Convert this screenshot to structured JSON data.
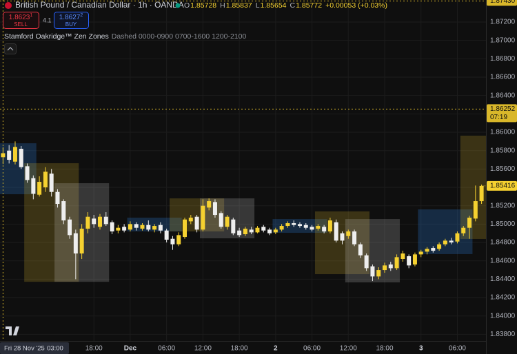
{
  "chart_data": {
    "type": "candlestick",
    "title": "British Pound / Canadian Dollar · 1h · OANDA",
    "ohlc_labels": [
      "O",
      "H",
      "L",
      "C"
    ],
    "change_text": "+0.00053 (+0.03%)",
    "sell": {
      "price": "1.8623",
      "pip": "1",
      "label": "SELL"
    },
    "spread": "4.1",
    "buy": {
      "price": "1.8627",
      "pip": "2",
      "label": "BUY"
    },
    "indicator": {
      "name": "Stamford Oakridge™ Zen Zones",
      "settings": "Dashed 0000-0900 0700-1600 1200-2100"
    },
    "crosshair": {
      "date": "Fri 28 Nov '25",
      "time": "03:00",
      "index": 0
    },
    "up_color": "#f5d130",
    "down_color": "#eeeeee",
    "grid": true,
    "categories": [
      null,
      null,
      null,
      null,
      null,
      null,
      null,
      null,
      null,
      null,
      null,
      null,
      null,
      null,
      null,
      "18:00",
      null,
      null,
      null,
      null,
      null,
      "Dec",
      null,
      null,
      null,
      null,
      null,
      "06:00",
      null,
      null,
      null,
      null,
      null,
      "12:00",
      null,
      null,
      null,
      null,
      null,
      "18:00",
      null,
      null,
      null,
      null,
      null,
      "2",
      null,
      null,
      null,
      null,
      null,
      "06:00",
      null,
      null,
      null,
      null,
      null,
      "12:00",
      null,
      null,
      null,
      null,
      null,
      "18:00",
      null,
      null,
      null,
      null,
      null,
      "3",
      null,
      null,
      null,
      null,
      null,
      "06:00",
      null,
      null,
      null,
      null
    ],
    "open": [
      1.85728,
      1.858,
      1.8568,
      1.8582,
      1.8563,
      1.855,
      1.8532,
      1.854,
      1.8555,
      1.8535,
      1.8525,
      1.8505,
      1.849,
      1.8468,
      1.8495,
      1.8506,
      1.8497,
      1.8508,
      1.8502,
      1.8493,
      1.8497,
      1.8494,
      1.85,
      1.8495,
      1.8499,
      1.8494,
      1.8499,
      1.8493,
      1.8484,
      1.8478,
      1.8486,
      1.8503,
      1.8508,
      1.8494,
      1.8518,
      1.8524,
      1.8512,
      1.8497,
      1.8505,
      1.8493,
      1.8489,
      1.8494,
      1.8491,
      1.8497,
      1.8494,
      1.8491,
      1.8494,
      1.8498,
      1.8501,
      1.85,
      1.8499,
      1.8497,
      1.8495,
      1.8497,
      1.8492,
      1.8502,
      1.849,
      1.8487,
      1.8492,
      1.8478,
      1.8466,
      1.8454,
      1.8443,
      1.845,
      1.8456,
      1.8452,
      1.8462,
      1.8465,
      1.8456,
      1.8467,
      1.847,
      1.8474,
      1.8473,
      1.8478,
      1.8482,
      1.8481,
      1.849,
      1.8496,
      1.8506,
      1.8525
    ],
    "high": [
      1.85837,
      1.8586,
      1.859,
      1.8585,
      1.8566,
      1.8553,
      1.8552,
      1.8562,
      1.856,
      1.8538,
      1.8527,
      1.8508,
      1.8494,
      1.85,
      1.8513,
      1.851,
      1.8511,
      1.8513,
      1.8504,
      1.8499,
      1.85,
      1.8503,
      1.8502,
      1.8501,
      1.8504,
      1.85,
      1.8502,
      1.8495,
      1.8487,
      1.8491,
      1.8507,
      1.851,
      1.851,
      1.8527,
      1.8528,
      1.8527,
      1.8514,
      1.851,
      1.8507,
      1.8496,
      1.8497,
      1.8497,
      1.8498,
      1.8499,
      1.8496,
      1.8496,
      1.85,
      1.8503,
      1.8504,
      1.8502,
      1.8501,
      1.8499,
      1.85,
      1.8499,
      1.8507,
      1.8505,
      1.8492,
      1.8494,
      1.8494,
      1.848,
      1.8468,
      1.8456,
      1.8453,
      1.8458,
      1.8459,
      1.8467,
      1.8471,
      1.8467,
      1.8469,
      1.8472,
      1.8475,
      1.8476,
      1.848,
      1.8484,
      1.8485,
      1.8492,
      1.8498,
      1.8509,
      1.8542,
      1.8543
    ],
    "low": [
      1.85654,
      1.8566,
      1.8565,
      1.856,
      1.8545,
      1.8527,
      1.853,
      1.8535,
      1.853,
      1.8518,
      1.85,
      1.8484,
      1.844,
      1.8462,
      1.849,
      1.8496,
      1.8494,
      1.8498,
      1.8489,
      1.849,
      1.8491,
      1.8492,
      1.8493,
      1.8493,
      1.8492,
      1.8491,
      1.849,
      1.848,
      1.8472,
      1.8476,
      1.8484,
      1.85,
      1.8491,
      1.8492,
      1.8515,
      1.8507,
      1.8495,
      1.8494,
      1.8488,
      1.8486,
      1.8487,
      1.8489,
      1.849,
      1.8491,
      1.8488,
      1.8489,
      1.8492,
      1.8496,
      1.8497,
      1.8496,
      1.8494,
      1.8492,
      1.8493,
      1.849,
      1.849,
      1.848,
      1.8478,
      1.8484,
      1.8476,
      1.8463,
      1.8449,
      1.8438,
      1.844,
      1.8447,
      1.8449,
      1.845,
      1.8459,
      1.8452,
      1.8454,
      1.8464,
      1.8467,
      1.8469,
      1.8471,
      1.8476,
      1.8478,
      1.8479,
      1.8487,
      1.8484,
      1.8503,
      1.8522
    ],
    "close": [
      1.85772,
      1.857,
      1.8584,
      1.8562,
      1.8548,
      1.8533,
      1.8546,
      1.8557,
      1.8535,
      1.8522,
      1.8504,
      1.8488,
      1.8468,
      1.8495,
      1.8508,
      1.85,
      1.8508,
      1.85,
      1.8492,
      1.8496,
      1.8493,
      1.85,
      1.8496,
      1.8499,
      1.8494,
      1.8498,
      1.8493,
      1.8483,
      1.8478,
      1.8488,
      1.8505,
      1.8507,
      1.8494,
      1.852,
      1.8525,
      1.851,
      1.8497,
      1.8508,
      1.849,
      1.8488,
      1.8495,
      1.8491,
      1.8496,
      1.8493,
      1.849,
      1.8494,
      1.8498,
      1.8501,
      1.8499,
      1.8498,
      1.8496,
      1.8494,
      1.8498,
      1.8492,
      1.8504,
      1.8482,
      1.8482,
      1.8492,
      1.8478,
      1.8466,
      1.8452,
      1.8443,
      1.845,
      1.8455,
      1.8452,
      1.8464,
      1.8468,
      1.8455,
      1.8467,
      1.847,
      1.8473,
      1.8471,
      1.8478,
      1.8482,
      1.848,
      1.849,
      1.8496,
      1.8507,
      1.8525,
      1.85416
    ],
    "zones": [
      {
        "color": "rgba(40,110,190,0.30)",
        "start": -3,
        "end": 6,
        "high": 1.8588,
        "low": 1.85325
      },
      {
        "color": "rgba(190,160,40,0.25)",
        "start": 4,
        "end": 13,
        "high": 1.85663,
        "low": 1.84372
      },
      {
        "color": "rgba(200,200,200,0.22)",
        "start": 9,
        "end": 18,
        "high": 1.85445,
        "low": 1.84372
      },
      {
        "color": "rgba(40,110,190,0.30)",
        "start": 21,
        "end": 30,
        "high": 1.8507,
        "low": 1.8492
      },
      {
        "color": "rgba(190,160,40,0.25)",
        "start": 28,
        "end": 37,
        "high": 1.8528,
        "low": 1.8492
      },
      {
        "color": "rgba(200,200,200,0.22)",
        "start": 33,
        "end": 42,
        "high": 1.8528,
        "low": 1.84845
      },
      {
        "color": "rgba(40,110,190,0.30)",
        "start": 45,
        "end": 54,
        "high": 1.85055,
        "low": 1.84905
      },
      {
        "color": "rgba(190,160,40,0.25)",
        "start": 52,
        "end": 61,
        "high": 1.85138,
        "low": 1.84455
      },
      {
        "color": "rgba(200,200,200,0.22)",
        "start": 57,
        "end": 66,
        "high": 1.85055,
        "low": 1.84365
      },
      {
        "color": "rgba(40,110,190,0.30)",
        "start": 69,
        "end": 78,
        "high": 1.8516,
        "low": 1.84673
      },
      {
        "color": "rgba(190,160,40,0.25)",
        "start": 76,
        "end": 85,
        "high": 1.85963,
        "low": 1.84838
      }
    ],
    "price_lines": [
      {
        "value": 1.8743,
        "label": "1.87430",
        "color": "#d9b72a"
      },
      {
        "value": 1.86252,
        "label": "1.86252",
        "countdown": "07:19",
        "color": "#d9b72a"
      }
    ],
    "last_label": "1.85416",
    "ylim": [
      1.83728,
      1.8744
    ],
    "yticks": [
      {
        "value": 1.872,
        "label": "1.87200"
      },
      {
        "value": 1.87,
        "label": "1.87000"
      },
      {
        "value": 1.868,
        "label": "1.86800"
      },
      {
        "value": 1.866,
        "label": "1.86600"
      },
      {
        "value": 1.864,
        "label": "1.86400"
      },
      {
        "value": 1.862,
        "label": "1.86200"
      },
      {
        "value": 1.86,
        "label": "1.86000"
      },
      {
        "value": 1.858,
        "label": "1.85800"
      },
      {
        "value": 1.856,
        "label": "1.85600"
      },
      {
        "value": 1.854,
        "label": "1.85400"
      },
      {
        "value": 1.852,
        "label": "1.85200"
      },
      {
        "value": 1.85,
        "label": "1.85000"
      },
      {
        "value": 1.848,
        "label": "1.84800"
      },
      {
        "value": 1.846,
        "label": "1.84600"
      },
      {
        "value": 1.844,
        "label": "1.84400"
      },
      {
        "value": 1.842,
        "label": "1.84200"
      },
      {
        "value": 1.84,
        "label": "1.84000"
      },
      {
        "value": 1.838,
        "label": "1.83800"
      }
    ]
  }
}
